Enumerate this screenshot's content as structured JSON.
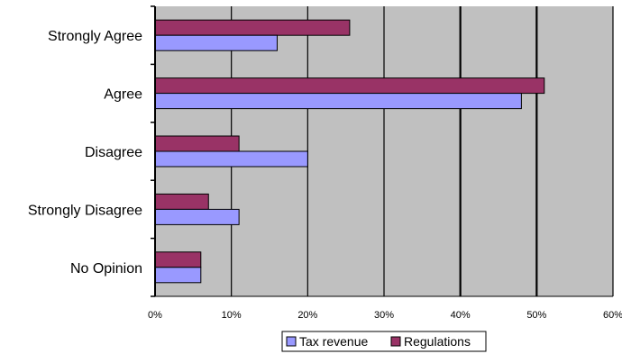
{
  "chart_data": {
    "type": "bar",
    "orientation": "horizontal",
    "categories": [
      "Strongly Agree",
      "Agree",
      "Disagree",
      "Strongly Disagree",
      "No Opinion"
    ],
    "series": [
      {
        "name": "Tax revenue",
        "values": [
          16,
          48,
          20,
          11,
          6
        ],
        "color": "#9999ff"
      },
      {
        "name": "Regulations",
        "values": [
          25.5,
          51,
          11,
          7,
          6
        ],
        "color": "#993366"
      }
    ],
    "xlim": [
      0,
      60
    ],
    "xticks": [
      0,
      10,
      20,
      30,
      40,
      50,
      60
    ],
    "xtick_labels": [
      "0%",
      "10%",
      "20%",
      "30%",
      "40%",
      "50%",
      "60%"
    ],
    "grid": true,
    "plot_background": "#c0c0c0",
    "legend": "bottom",
    "title": "",
    "xlabel": "",
    "ylabel": ""
  }
}
